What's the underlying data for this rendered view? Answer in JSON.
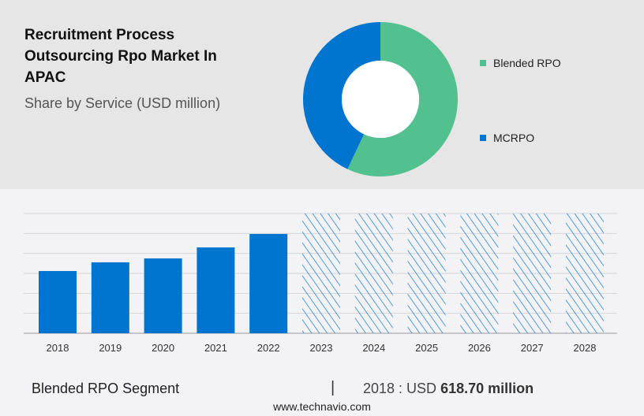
{
  "header": {
    "title": "Recruitment Process Outsourcing Rpo Market In APAC",
    "subtitle": "Share by Service (USD million)"
  },
  "chart_data": [
    {
      "type": "pie",
      "subtype": "donut",
      "title": "Share by Service (USD million)",
      "slices": [
        {
          "label": "Blended RPO",
          "share": 57,
          "color": "#52c08f"
        },
        {
          "label": "MCRPO",
          "share": 43,
          "color": "#0075cf"
        }
      ],
      "legend": "right"
    },
    {
      "type": "bar",
      "categories": [
        "2018",
        "2019",
        "2020",
        "2021",
        "2022",
        "2023",
        "2024",
        "2025",
        "2026",
        "2027",
        "2028"
      ],
      "values": [
        618.7,
        705,
        744,
        853,
        987,
        null,
        null,
        null,
        null,
        null,
        null
      ],
      "forecast_years": [
        "2023",
        "2024",
        "2025",
        "2026",
        "2027",
        "2028"
      ],
      "ylim": [
        0,
        1190
      ],
      "grid": true,
      "color": "#0075cf",
      "xlabel": "",
      "ylabel": ""
    }
  ],
  "footer": {
    "segment": "Blended RPO Segment",
    "separator": "|",
    "year_label": "2018 : USD ",
    "value": "618.70 million",
    "site": "www.technavio.com"
  }
}
